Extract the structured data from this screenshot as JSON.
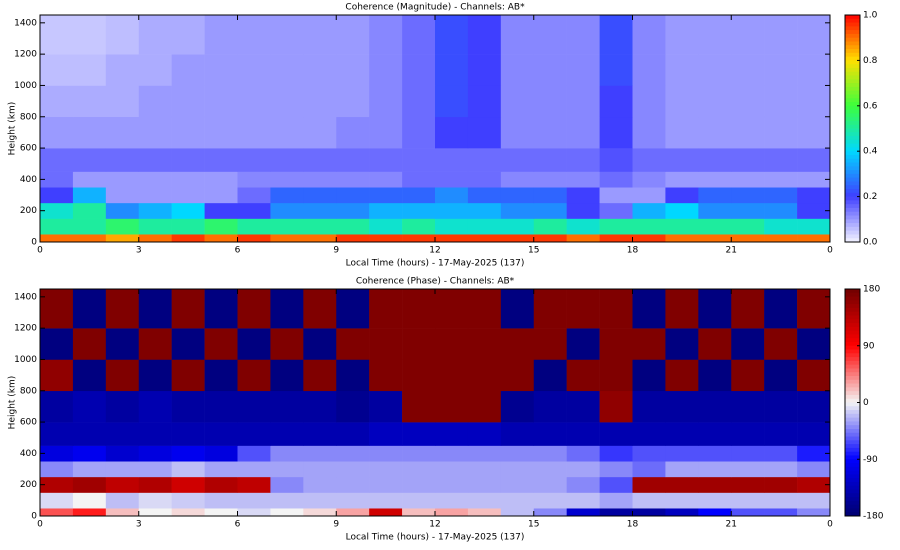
{
  "chart_data": [
    {
      "type": "heatmap",
      "title": "Coherence (Magnitude) - Channels: AB*",
      "xlabel": "Local Time (hours) - 17-May-2025 (137)",
      "ylabel": "Height (km)",
      "xlim": [
        0,
        24
      ],
      "ylim": [
        0,
        1450
      ],
      "xticks": [
        0,
        3,
        6,
        9,
        12,
        15,
        18,
        21,
        {
          "value": 24,
          "label": "0"
        }
      ],
      "yticks": [
        0,
        200,
        400,
        600,
        800,
        1000,
        1200,
        1400
      ],
      "clim": [
        0,
        1
      ],
      "cticks": [
        {
          "value": 0,
          "label": "0.0"
        },
        {
          "value": 0.2,
          "label": "0.2"
        },
        {
          "value": 0.4,
          "label": "0.4"
        },
        {
          "value": 0.6,
          "label": "0.6"
        },
        {
          "value": 0.8,
          "label": "0.8"
        },
        {
          "value": 1,
          "label": "1.0"
        }
      ],
      "colorscale": [
        "#f4f4ff",
        "#3f3fff",
        "#00d8ff",
        "#3cff3c",
        "#ffe000",
        "#ff0000"
      ],
      "x_bins": [
        0,
        1,
        2,
        3,
        4,
        5,
        6,
        7,
        8,
        9,
        10,
        11,
        12,
        13,
        14,
        15,
        16,
        17,
        18,
        19,
        20,
        21,
        22,
        23,
        24
      ],
      "y_bins": [
        0,
        50,
        150,
        250,
        350,
        450,
        600,
        800,
        1000,
        1200,
        1450
      ],
      "values": [
        [
          0.9,
          0.9,
          0.85,
          0.9,
          0.95,
          0.9,
          0.95,
          0.9,
          0.9,
          0.95,
          0.95,
          0.95,
          0.95,
          0.95,
          0.95,
          0.95,
          0.9,
          0.95,
          0.95,
          0.9,
          0.9,
          0.9,
          0.9,
          0.9
        ],
        [
          0.5,
          0.5,
          0.55,
          0.5,
          0.5,
          0.55,
          0.5,
          0.5,
          0.5,
          0.5,
          0.45,
          0.5,
          0.45,
          0.45,
          0.45,
          0.5,
          0.45,
          0.5,
          0.5,
          0.5,
          0.5,
          0.5,
          0.45,
          0.45
        ],
        [
          0.45,
          0.5,
          0.3,
          0.35,
          0.4,
          0.2,
          0.2,
          0.3,
          0.3,
          0.3,
          0.35,
          0.35,
          0.35,
          0.35,
          0.3,
          0.3,
          0.2,
          0.15,
          0.35,
          0.4,
          0.3,
          0.3,
          0.3,
          0.2
        ],
        [
          0.2,
          0.35,
          0.1,
          0.1,
          0.1,
          0.1,
          0.15,
          0.25,
          0.25,
          0.25,
          0.25,
          0.25,
          0.3,
          0.25,
          0.25,
          0.25,
          0.2,
          0.1,
          0.1,
          0.2,
          0.25,
          0.25,
          0.25,
          0.2
        ],
        [
          0.15,
          0.1,
          0.1,
          0.1,
          0.1,
          0.1,
          0.12,
          0.12,
          0.12,
          0.12,
          0.12,
          0.15,
          0.15,
          0.15,
          0.12,
          0.12,
          0.12,
          0.15,
          0.12,
          0.1,
          0.1,
          0.1,
          0.1,
          0.1
        ],
        [
          0.15,
          0.15,
          0.15,
          0.15,
          0.15,
          0.15,
          0.15,
          0.15,
          0.15,
          0.15,
          0.15,
          0.15,
          0.15,
          0.15,
          0.15,
          0.15,
          0.15,
          0.18,
          0.15,
          0.15,
          0.15,
          0.15,
          0.15,
          0.15
        ],
        [
          0.1,
          0.1,
          0.1,
          0.1,
          0.1,
          0.1,
          0.1,
          0.1,
          0.1,
          0.12,
          0.12,
          0.15,
          0.2,
          0.2,
          0.12,
          0.12,
          0.12,
          0.2,
          0.12,
          0.1,
          0.1,
          0.1,
          0.1,
          0.1
        ],
        [
          0.08,
          0.08,
          0.08,
          0.1,
          0.1,
          0.1,
          0.1,
          0.1,
          0.1,
          0.1,
          0.12,
          0.15,
          0.22,
          0.2,
          0.12,
          0.12,
          0.12,
          0.2,
          0.12,
          0.1,
          0.1,
          0.1,
          0.1,
          0.1
        ],
        [
          0.06,
          0.06,
          0.08,
          0.08,
          0.1,
          0.1,
          0.1,
          0.1,
          0.1,
          0.1,
          0.12,
          0.15,
          0.22,
          0.2,
          0.12,
          0.12,
          0.12,
          0.22,
          0.12,
          0.1,
          0.1,
          0.1,
          0.1,
          0.1
        ],
        [
          0.05,
          0.05,
          0.06,
          0.08,
          0.08,
          0.1,
          0.1,
          0.1,
          0.1,
          0.1,
          0.12,
          0.15,
          0.22,
          0.2,
          0.12,
          0.12,
          0.12,
          0.22,
          0.12,
          0.1,
          0.1,
          0.1,
          0.1,
          0.1
        ]
      ]
    },
    {
      "type": "heatmap",
      "title": "Coherence (Phase) - Channels: AB*",
      "xlabel": "Local Time (hours) - 17-May-2025 (137)",
      "ylabel": "Height (km)",
      "xlim": [
        0,
        24
      ],
      "ylim": [
        0,
        1450
      ],
      "xticks": [
        0,
        3,
        6,
        9,
        12,
        15,
        18,
        21,
        {
          "value": 24,
          "label": "0"
        }
      ],
      "yticks": [
        0,
        200,
        400,
        600,
        800,
        1000,
        1200,
        1400
      ],
      "clim": [
        -180,
        180
      ],
      "cticks": [
        -180,
        -90,
        0,
        90,
        180
      ],
      "colorscale": [
        "#000070",
        "#0000ff",
        "#f4f4f4",
        "#ff0000",
        "#700000"
      ],
      "x_bins": [
        0,
        1,
        2,
        3,
        4,
        5,
        6,
        7,
        8,
        9,
        10,
        11,
        12,
        13,
        14,
        15,
        16,
        17,
        18,
        19,
        20,
        21,
        22,
        23,
        24
      ],
      "y_bins": [
        0,
        50,
        150,
        250,
        350,
        450,
        600,
        800,
        1000,
        1200,
        1450
      ],
      "values": [
        [
          60,
          80,
          20,
          0,
          10,
          0,
          -10,
          0,
          10,
          30,
          120,
          20,
          30,
          20,
          -20,
          -40,
          -120,
          -150,
          -150,
          -130,
          -90,
          -60,
          -60,
          -40
        ],
        [
          -10,
          0,
          -20,
          -10,
          -15,
          -20,
          -20,
          -20,
          -20,
          -20,
          -20,
          -20,
          -20,
          -20,
          -20,
          -20,
          -20,
          -30,
          -20,
          -20,
          -20,
          -20,
          -20,
          -20
        ],
        [
          140,
          150,
          130,
          140,
          120,
          140,
          130,
          -40,
          -30,
          -30,
          -30,
          -30,
          -30,
          -30,
          -30,
          -30,
          -40,
          -60,
          150,
          150,
          150,
          150,
          150,
          140
        ],
        [
          -40,
          -30,
          -30,
          -30,
          -20,
          -30,
          -30,
          -30,
          -30,
          -30,
          -30,
          -30,
          -30,
          -30,
          -30,
          -30,
          -30,
          -40,
          -50,
          -30,
          -30,
          -30,
          -30,
          -40
        ],
        [
          -110,
          -100,
          -120,
          -110,
          -100,
          -110,
          -60,
          -40,
          -40,
          -40,
          -40,
          -40,
          -40,
          -40,
          -40,
          -40,
          -50,
          -70,
          -60,
          -60,
          -60,
          -60,
          -60,
          -80
        ],
        [
          -140,
          -140,
          -140,
          -140,
          -140,
          -140,
          -140,
          -140,
          -140,
          -140,
          -130,
          -130,
          -130,
          -130,
          -140,
          -140,
          -140,
          -140,
          -140,
          -140,
          -140,
          -140,
          -140,
          -140
        ],
        [
          -150,
          -140,
          -150,
          -140,
          -150,
          -150,
          -150,
          -150,
          -150,
          -160,
          -150,
          170,
          170,
          170,
          -160,
          -150,
          -150,
          160,
          -150,
          -150,
          -150,
          -150,
          -150,
          -150
        ],
        [
          160,
          -170,
          170,
          -170,
          170,
          -170,
          170,
          -170,
          170,
          -170,
          170,
          170,
          170,
          170,
          170,
          -170,
          170,
          170,
          -170,
          170,
          -170,
          170,
          -170,
          170
        ],
        [
          -170,
          170,
          -170,
          170,
          -170,
          170,
          -170,
          170,
          -170,
          170,
          170,
          170,
          170,
          170,
          170,
          170,
          -170,
          170,
          170,
          -170,
          170,
          -170,
          170,
          -170
        ],
        [
          170,
          -170,
          170,
          -170,
          170,
          -170,
          170,
          -170,
          170,
          -170,
          170,
          170,
          170,
          170,
          -170,
          170,
          170,
          170,
          -170,
          170,
          -170,
          170,
          -170,
          170
        ]
      ]
    }
  ]
}
